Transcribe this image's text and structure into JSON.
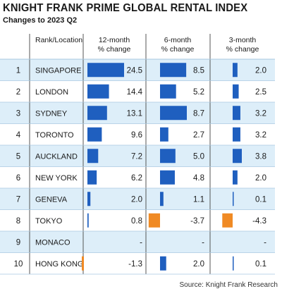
{
  "title": "KNIGHT FRANK PRIME GLOBAL RENTAL INDEX",
  "subtitle": "Changes to 2023 Q2",
  "source": "Source: Knight Frank Research",
  "colors": {
    "positive": "#1f5fbf",
    "negative": "#f08a24",
    "row_shade": "#ddeef9",
    "divider": "#555555",
    "row_line": "#a8c8e0"
  },
  "chart_data": {
    "type": "table",
    "columns": [
      {
        "key": "rank_location",
        "label_line1": "Rank/Location",
        "label_line2": ""
      },
      {
        "key": "12m",
        "label_line1": "12-month",
        "label_line2": "% change",
        "range": [
          -4.3,
          24.5
        ]
      },
      {
        "key": "6m",
        "label_line1": "6-month",
        "label_line2": "% change",
        "range": [
          -4.3,
          8.7
        ]
      },
      {
        "key": "3m",
        "label_line1": "3-month",
        "label_line2": "% change",
        "range": [
          -4.3,
          4.3
        ]
      }
    ],
    "rows": [
      {
        "rank": "1",
        "location": "SINGAPORE",
        "values": [
          24.5,
          8.5,
          2.0
        ],
        "labels": [
          "24.5",
          "8.5",
          "2.0"
        ]
      },
      {
        "rank": "2",
        "location": "LONDON",
        "values": [
          14.4,
          5.2,
          2.5
        ],
        "labels": [
          "14.4",
          "5.2",
          "2.5"
        ]
      },
      {
        "rank": "3",
        "location": "SYDNEY",
        "values": [
          13.1,
          8.7,
          3.2
        ],
        "labels": [
          "13.1",
          "8.7",
          "3.2"
        ]
      },
      {
        "rank": "4",
        "location": "TORONTO",
        "values": [
          9.6,
          2.7,
          3.2
        ],
        "labels": [
          "9.6",
          "2.7",
          "3.2"
        ]
      },
      {
        "rank": "5",
        "location": "AUCKLAND",
        "values": [
          7.2,
          5.0,
          3.8
        ],
        "labels": [
          "7.2",
          "5.0",
          "3.8"
        ]
      },
      {
        "rank": "6",
        "location": "NEW YORK",
        "values": [
          6.2,
          4.8,
          2.0
        ],
        "labels": [
          "6.2",
          "4.8",
          "2.0"
        ]
      },
      {
        "rank": "7",
        "location": "GENEVA",
        "values": [
          2.0,
          1.1,
          0.1
        ],
        "labels": [
          "2.0",
          "1.1",
          "0.1"
        ]
      },
      {
        "rank": "8",
        "location": "TOKYO",
        "values": [
          0.8,
          -3.7,
          -4.3
        ],
        "labels": [
          "0.8",
          "-3.7",
          "-4.3"
        ]
      },
      {
        "rank": "9",
        "location": "MONACO",
        "values": [
          null,
          null,
          null
        ],
        "labels": [
          "-",
          "-",
          "-"
        ]
      },
      {
        "rank": "10",
        "location": "HONG KONG",
        "values": [
          -1.3,
          2.0,
          0.1
        ],
        "labels": [
          "-1.3",
          "2.0",
          "0.1"
        ]
      }
    ]
  }
}
